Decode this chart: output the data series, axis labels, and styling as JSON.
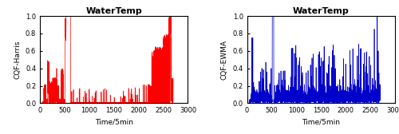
{
  "title": "WaterTemp",
  "xlabel": "Time/5min",
  "ylabel_left": "CQF-Harris",
  "ylabel_right": "CQF-EWMA",
  "xlim": [
    0,
    3000
  ],
  "ylim": [
    0,
    1
  ],
  "yticks": [
    0,
    0.2,
    0.4,
    0.6,
    0.8,
    1.0
  ],
  "xticks": [
    0,
    500,
    1000,
    1500,
    2000,
    2500,
    3000
  ],
  "color_left": "#FF0000",
  "color_right": "#0000CC",
  "linewidth": 0.5,
  "title_fontsize": 8,
  "label_fontsize": 6.5,
  "tick_fontsize": 6,
  "n_points": 2700
}
